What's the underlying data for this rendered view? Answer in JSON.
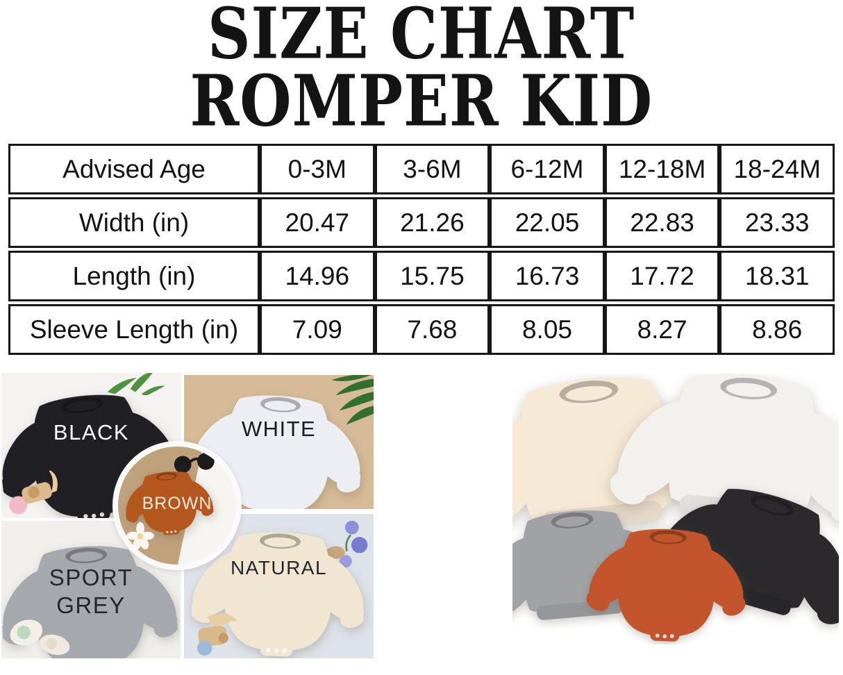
{
  "title": {
    "line1": "SIZE CHART",
    "line2": "ROMPER KID"
  },
  "chart_data": {
    "type": "table",
    "title": "SIZE CHART ROMPER KID",
    "units": "in",
    "header_row_label": "Advised Age",
    "size_columns": [
      "0-3M",
      "3-6M",
      "6-12M",
      "12-18M",
      "18-24M"
    ],
    "rows": [
      {
        "label": "Advised Age",
        "values": [
          "0-3M",
          "3-6M",
          "6-12M",
          "12-18M",
          "18-24M"
        ]
      },
      {
        "label": "Width (in)",
        "values": [
          "20.47",
          "21.26",
          "22.05",
          "22.83",
          "23.33"
        ]
      },
      {
        "label": "Length (in)",
        "values": [
          "14.96",
          "15.75",
          "16.73",
          "17.72",
          "18.31"
        ]
      },
      {
        "label": "Sleeve Length (in)",
        "values": [
          "7.09",
          "7.68",
          "8.05",
          "8.27",
          "8.86"
        ]
      }
    ]
  },
  "swatches": {
    "black": {
      "label": "BLACK",
      "shirt_color": "#201f23",
      "label_color": "#ffffff",
      "background_color": "#f4f3f1"
    },
    "white": {
      "label": "WHITE",
      "shirt_color": "#eceef3",
      "label_color": "#1b1b1b",
      "background_color": "#d6bb96"
    },
    "brown": {
      "label": "BROWN",
      "shirt_color": "#b4571e",
      "label_color": "#f6ecd8",
      "background_color": "#bfa17c"
    },
    "sport_grey": {
      "label": "SPORT GREY",
      "line1": "SPORT",
      "line2": "GREY",
      "shirt_color": "#a5a8ad",
      "label_color": "#26262a",
      "background_color": "#f0efec"
    },
    "natural": {
      "label": "NATURAL",
      "shirt_color": "#f0e6d1",
      "label_color": "#26262a",
      "background_color": "#dee3e9"
    }
  },
  "group_photo": {
    "items": [
      {
        "id": "cream",
        "name": "cream sweatshirt",
        "color": "#f6e9d5"
      },
      {
        "id": "white",
        "name": "white sweatshirt",
        "color": "#f3f1ee"
      },
      {
        "id": "charcoal",
        "name": "charcoal black sweatshirt",
        "color": "#2b292c"
      },
      {
        "id": "grey",
        "name": "heather grey sweatshirt",
        "color": "#a1a2a5"
      },
      {
        "id": "orange",
        "name": "rust orange romper",
        "color": "#c2552b"
      }
    ]
  }
}
